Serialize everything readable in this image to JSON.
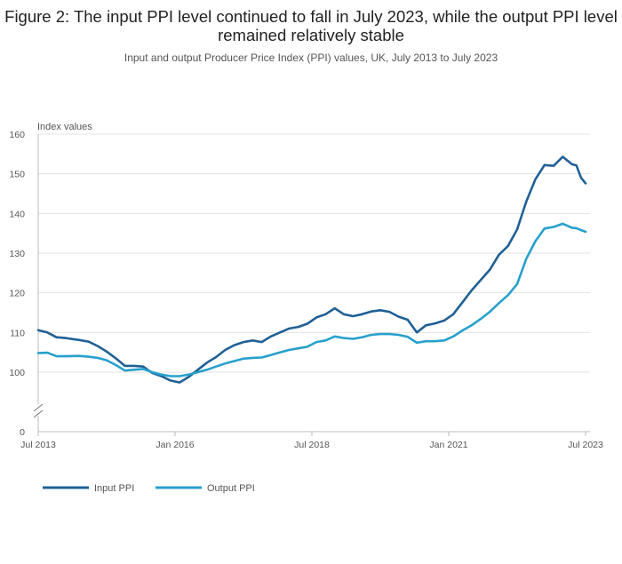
{
  "chart_data": {
    "type": "line",
    "title": "Figure 2: The input PPI level continued to fall in July 2023, while the output PPI level remained relatively stable",
    "subtitle": "Input and output Producer Price Index (PPI) values, UK, July 2013 to July 2023",
    "ylabel": "Index values",
    "ylim": [
      95,
      160
    ],
    "y_axis_break": true,
    "y_ticks": [
      "160",
      "150",
      "140",
      "130",
      "120",
      "110",
      "100",
      "0"
    ],
    "x_range": [
      "2013-07",
      "2023-07"
    ],
    "x_ticks": [
      {
        "date": "2013-07",
        "label": "Jul 2013"
      },
      {
        "date": "2016-01",
        "label": "Jan 2016"
      },
      {
        "date": "2018-07",
        "label": "Jul 2018"
      },
      {
        "date": "2021-01",
        "label": "Jan 2021"
      },
      {
        "date": "2023-07",
        "label": "Jul 2023"
      }
    ],
    "grid": true,
    "legend_position": "bottom-left",
    "series": [
      {
        "name": "Input PPI",
        "color": "#206095",
        "points": [
          [
            "2013-07",
            110.6
          ],
          [
            "2013-09",
            110.0
          ],
          [
            "2013-11",
            108.8
          ],
          [
            "2014-01",
            108.6
          ],
          [
            "2014-04",
            108.1
          ],
          [
            "2014-06",
            107.7
          ],
          [
            "2014-08",
            106.6
          ],
          [
            "2014-10",
            105.2
          ],
          [
            "2014-12",
            103.5
          ],
          [
            "2015-02",
            101.6
          ],
          [
            "2015-04",
            101.6
          ],
          [
            "2015-06",
            101.4
          ],
          [
            "2015-08",
            99.8
          ],
          [
            "2015-10",
            99.0
          ],
          [
            "2015-12",
            97.9
          ],
          [
            "2016-02",
            97.4
          ],
          [
            "2016-04",
            98.8
          ],
          [
            "2016-06",
            100.6
          ],
          [
            "2016-08",
            102.4
          ],
          [
            "2016-10",
            103.8
          ],
          [
            "2016-12",
            105.6
          ],
          [
            "2017-02",
            106.8
          ],
          [
            "2017-04",
            107.6
          ],
          [
            "2017-06",
            108.0
          ],
          [
            "2017-08",
            107.6
          ],
          [
            "2017-10",
            109.0
          ],
          [
            "2017-12",
            110.0
          ],
          [
            "2018-02",
            111.0
          ],
          [
            "2018-04",
            111.4
          ],
          [
            "2018-06",
            112.2
          ],
          [
            "2018-08",
            113.8
          ],
          [
            "2018-10",
            114.6
          ],
          [
            "2018-12",
            116.1
          ],
          [
            "2019-02",
            114.6
          ],
          [
            "2019-04",
            114.1
          ],
          [
            "2019-06",
            114.6
          ],
          [
            "2019-08",
            115.3
          ],
          [
            "2019-10",
            115.6
          ],
          [
            "2019-12",
            115.2
          ],
          [
            "2020-02",
            114.0
          ],
          [
            "2020-04",
            113.2
          ],
          [
            "2020-06",
            110.0
          ],
          [
            "2020-08",
            111.8
          ],
          [
            "2020-10",
            112.3
          ],
          [
            "2020-12",
            113.0
          ],
          [
            "2021-02",
            114.6
          ],
          [
            "2021-04",
            117.6
          ],
          [
            "2021-06",
            120.6
          ],
          [
            "2021-08",
            123.2
          ],
          [
            "2021-10",
            125.8
          ],
          [
            "2021-12",
            129.6
          ],
          [
            "2022-02",
            131.8
          ],
          [
            "2022-04",
            136.0
          ],
          [
            "2022-06",
            143.0
          ],
          [
            "2022-08",
            148.6
          ],
          [
            "2022-10",
            152.2
          ],
          [
            "2022-12",
            152.0
          ],
          [
            "2023-02",
            154.3
          ],
          [
            "2023-04",
            152.4
          ],
          [
            "2023-05",
            152.1
          ],
          [
            "2023-06",
            149.0
          ],
          [
            "2023-07",
            147.6
          ]
        ]
      },
      {
        "name": "Output PPI",
        "color": "#27a0cc",
        "points": [
          [
            "2013-07",
            104.8
          ],
          [
            "2013-09",
            104.9
          ],
          [
            "2013-11",
            104.0
          ],
          [
            "2014-01",
            104.0
          ],
          [
            "2014-04",
            104.1
          ],
          [
            "2014-06",
            103.9
          ],
          [
            "2014-08",
            103.6
          ],
          [
            "2014-10",
            103.0
          ],
          [
            "2014-12",
            101.8
          ],
          [
            "2015-02",
            100.4
          ],
          [
            "2015-04",
            100.6
          ],
          [
            "2015-06",
            100.8
          ],
          [
            "2015-08",
            100.0
          ],
          [
            "2015-10",
            99.4
          ],
          [
            "2015-12",
            99.0
          ],
          [
            "2016-02",
            99.0
          ],
          [
            "2016-04",
            99.4
          ],
          [
            "2016-06",
            100.0
          ],
          [
            "2016-08",
            100.6
          ],
          [
            "2016-10",
            101.4
          ],
          [
            "2016-12",
            102.2
          ],
          [
            "2017-02",
            102.8
          ],
          [
            "2017-04",
            103.4
          ],
          [
            "2017-06",
            103.6
          ],
          [
            "2017-08",
            103.7
          ],
          [
            "2017-10",
            104.3
          ],
          [
            "2017-12",
            105.0
          ],
          [
            "2018-02",
            105.6
          ],
          [
            "2018-04",
            106.0
          ],
          [
            "2018-06",
            106.4
          ],
          [
            "2018-08",
            107.6
          ],
          [
            "2018-10",
            108.0
          ],
          [
            "2018-12",
            109.0
          ],
          [
            "2019-02",
            108.6
          ],
          [
            "2019-04",
            108.4
          ],
          [
            "2019-06",
            108.8
          ],
          [
            "2019-08",
            109.4
          ],
          [
            "2019-10",
            109.6
          ],
          [
            "2019-12",
            109.6
          ],
          [
            "2020-02",
            109.4
          ],
          [
            "2020-04",
            108.9
          ],
          [
            "2020-06",
            107.4
          ],
          [
            "2020-08",
            107.8
          ],
          [
            "2020-10",
            107.8
          ],
          [
            "2020-12",
            108.0
          ],
          [
            "2021-02",
            109.0
          ],
          [
            "2021-04",
            110.5
          ],
          [
            "2021-06",
            111.8
          ],
          [
            "2021-08",
            113.4
          ],
          [
            "2021-10",
            115.2
          ],
          [
            "2021-12",
            117.4
          ],
          [
            "2022-02",
            119.4
          ],
          [
            "2022-04",
            122.2
          ],
          [
            "2022-06",
            128.6
          ],
          [
            "2022-08",
            133.0
          ],
          [
            "2022-10",
            136.2
          ],
          [
            "2022-12",
            136.6
          ],
          [
            "2023-02",
            137.4
          ],
          [
            "2023-04",
            136.4
          ],
          [
            "2023-05",
            136.3
          ],
          [
            "2023-06",
            135.8
          ],
          [
            "2023-07",
            135.4
          ]
        ]
      }
    ]
  }
}
